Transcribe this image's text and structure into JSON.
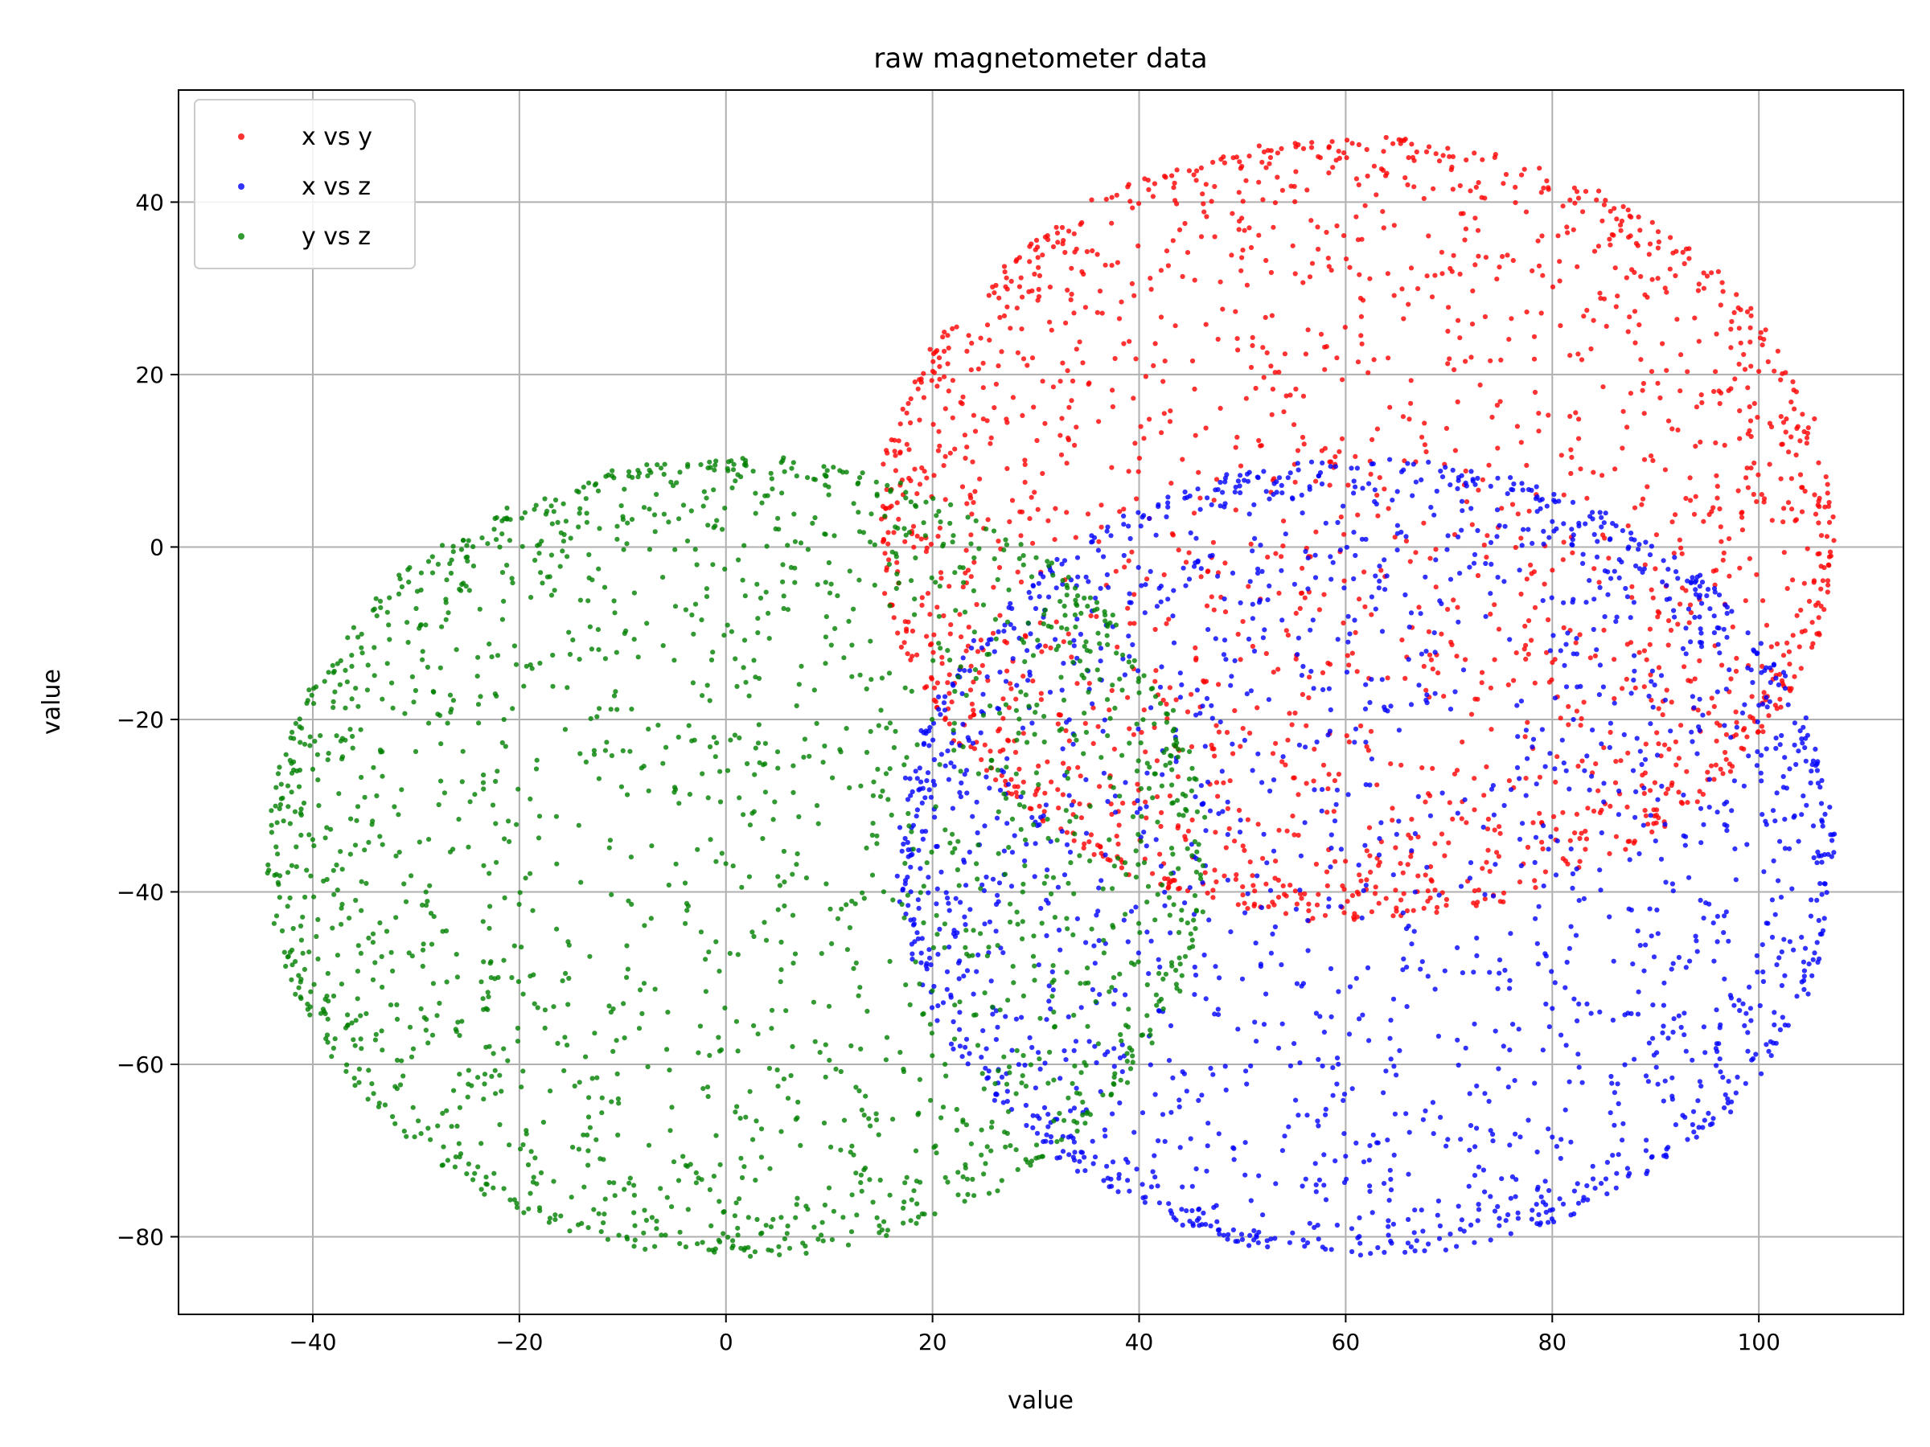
{
  "chart_data": {
    "type": "scatter",
    "title": "raw magnetometer data",
    "xlabel": "value",
    "ylabel": "value",
    "xlim": [
      -53,
      114
    ],
    "ylim": [
      -89,
      53
    ],
    "xticks": [
      -40,
      -20,
      0,
      20,
      40,
      60,
      80,
      100
    ],
    "yticks": [
      -80,
      -60,
      -40,
      -20,
      0,
      20,
      40
    ],
    "grid": true,
    "legend_position": "top-left",
    "series": [
      {
        "name": "x vs y",
        "color": "#ff0000",
        "shape": "sphere-projection",
        "center": [
          61,
          2
        ],
        "radius": [
          46,
          45
        ],
        "value_range": {
          "x": [
            16,
            107
          ],
          "y": [
            -45,
            47
          ]
        },
        "count": 2000
      },
      {
        "name": "x vs z",
        "color": "#0000ff",
        "shape": "sphere-projection",
        "center": [
          62,
          -36
        ],
        "radius": [
          45,
          46
        ],
        "value_range": {
          "x": [
            16,
            107
          ],
          "y": [
            -82,
            10
          ]
        },
        "count": 2000
      },
      {
        "name": "y vs z",
        "color": "#008000",
        "shape": "sphere-projection",
        "center": [
          1,
          -36
        ],
        "radius": [
          45,
          46
        ],
        "value_range": {
          "x": [
            -45,
            47
          ],
          "y": [
            -82,
            10
          ]
        },
        "count": 2000
      }
    ]
  }
}
